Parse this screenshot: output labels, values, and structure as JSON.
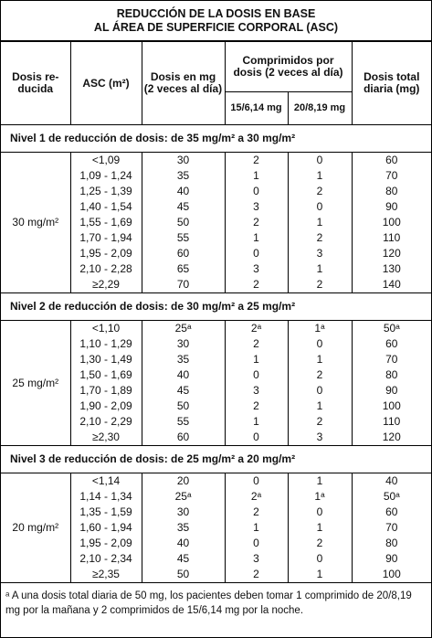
{
  "title": [
    "REDUCCIÓN DE LA DOSIS EN BASE",
    "AL ÁREA DE SUPERFICIE CORPORAL (ASC)"
  ],
  "header": {
    "reduced_dose": [
      "Dosis re-",
      "ducida"
    ],
    "bsa": "ASC (m²)",
    "dose_mg": [
      "Dosis en mg",
      "(2 veces al día)"
    ],
    "tablets": [
      "Comprimidos por",
      "dosis (2 veces al día)"
    ],
    "tablet_a": "15/6,14 mg",
    "tablet_b": "20/8,19 mg",
    "total": [
      "Dosis total",
      "diaria (mg)"
    ]
  },
  "levels": [
    {
      "title": "Nivel 1 de reducción de dosis: de 35 mg/m² a 30 mg/m²",
      "dose": "30 mg/m²",
      "rows": [
        [
          "<1,09",
          "30",
          "2",
          "0",
          "60"
        ],
        [
          "1,09 - 1,24",
          "35",
          "1",
          "1",
          "70"
        ],
        [
          "1,25 - 1,39",
          "40",
          "0",
          "2",
          "80"
        ],
        [
          "1,40 - 1,54",
          "45",
          "3",
          "0",
          "90"
        ],
        [
          "1,55 - 1,69",
          "50",
          "2",
          "1",
          "100"
        ],
        [
          "1,70 - 1,94",
          "55",
          "1",
          "2",
          "110"
        ],
        [
          "1,95 - 2,09",
          "60",
          "0",
          "3",
          "120"
        ],
        [
          "2,10 - 2,28",
          "65",
          "3",
          "1",
          "130"
        ],
        [
          "≥2,29",
          "70",
          "2",
          "2",
          "140"
        ]
      ]
    },
    {
      "title": "Nivel 2 de reducción de dosis: de 30 mg/m² a 25 mg/m²",
      "dose": "25 mg/m²",
      "rows": [
        [
          "<1,10",
          "25ᵃ",
          "2ᵃ",
          "1ᵃ",
          "50ᵃ"
        ],
        [
          "1,10 - 1,29",
          "30",
          "2",
          "0",
          "60"
        ],
        [
          "1,30 - 1,49",
          "35",
          "1",
          "1",
          "70"
        ],
        [
          "1,50 - 1,69",
          "40",
          "0",
          "2",
          "80"
        ],
        [
          "1,70 - 1,89",
          "45",
          "3",
          "0",
          "90"
        ],
        [
          "1,90 - 2,09",
          "50",
          "2",
          "1",
          "100"
        ],
        [
          "2,10 - 2,29",
          "55",
          "1",
          "2",
          "110"
        ],
        [
          "≥2,30",
          "60",
          "0",
          "3",
          "120"
        ]
      ]
    },
    {
      "title": "Nivel 3 de reducción de dosis: de 25 mg/m² a 20 mg/m²",
      "dose": "20 mg/m²",
      "rows": [
        [
          "<1,14",
          "20",
          "0",
          "1",
          "40"
        ],
        [
          "1,14 - 1,34",
          "25ᵃ",
          "2ᵃ",
          "1ᵃ",
          "50ᵃ"
        ],
        [
          "1,35 - 1,59",
          "30",
          "2",
          "0",
          "60"
        ],
        [
          "1,60 - 1,94",
          "35",
          "1",
          "1",
          "70"
        ],
        [
          "1,95 - 2,09",
          "40",
          "0",
          "2",
          "80"
        ],
        [
          "2,10 - 2,34",
          "45",
          "3",
          "0",
          "90"
        ],
        [
          "≥2,35",
          "50",
          "2",
          "1",
          "100"
        ]
      ]
    }
  ],
  "footnote": {
    "marker": "ᵃ",
    "text": "A una dosis total diaria de 50 mg, los pacientes deben tomar 1 comprimido de 20/8,19 mg por la mañana y 2 comprimidos de 15/6,14 mg por la noche."
  }
}
